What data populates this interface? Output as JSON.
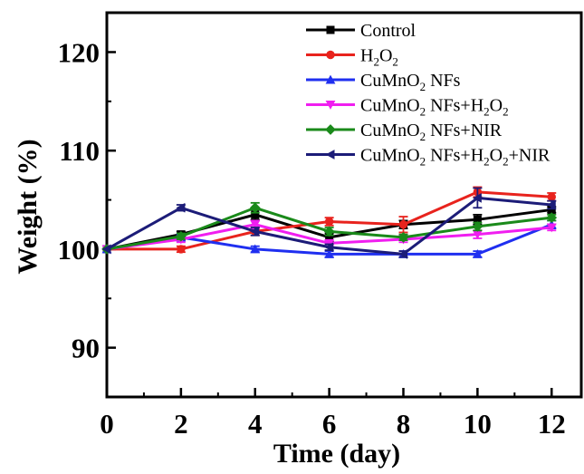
{
  "chart_data": {
    "type": "line",
    "xlabel": "Time (day)",
    "ylabel": "Weight (%)",
    "xlim": [
      0,
      12.8
    ],
    "ylim": [
      85,
      124
    ],
    "x_ticks": [
      0,
      2,
      4,
      6,
      8,
      10,
      12
    ],
    "x_tick_labels": [
      "0",
      "2",
      "4",
      "6",
      "8",
      "10",
      "12"
    ],
    "y_ticks": [
      90,
      100,
      110,
      120
    ],
    "y_tick_labels": [
      "90",
      "100",
      "110",
      "120"
    ],
    "x": [
      0,
      2,
      4,
      6,
      8,
      10,
      12
    ],
    "legend_position": "top-right",
    "series": [
      {
        "name": "Control",
        "name_parts": [
          [
            "Control",
            ""
          ]
        ],
        "color": "#000000",
        "marker": "square",
        "values": [
          100,
          101.5,
          103.5,
          101.2,
          102.5,
          103.0,
          104.0
        ],
        "errors": [
          0,
          0.3,
          0.5,
          0.4,
          0.4,
          0.5,
          0.3
        ]
      },
      {
        "name": "H2O2",
        "name_parts": [
          [
            "H",
            ""
          ],
          [
            "2",
            "sub"
          ],
          [
            "O",
            ""
          ],
          [
            "2",
            "sub"
          ]
        ],
        "color": "#e8231d",
        "marker": "circle",
        "values": [
          100,
          100,
          101.8,
          102.8,
          102.5,
          105.8,
          105.3
        ],
        "errors": [
          0,
          0.3,
          0.4,
          0.4,
          0.8,
          0.5,
          0.4
        ]
      },
      {
        "name": "CuMnO2 NFs",
        "name_parts": [
          [
            "CuMnO",
            ""
          ],
          [
            "2",
            "sub"
          ],
          [
            " NFs",
            ""
          ]
        ],
        "color": "#1f2ff0",
        "marker": "triangle-up",
        "values": [
          100,
          101.2,
          100,
          99.5,
          99.5,
          99.5,
          102.5
        ],
        "errors": [
          0,
          0.3,
          0.3,
          0.3,
          0.3,
          0.3,
          0.4
        ]
      },
      {
        "name": "CuMnO2 NFs+H2O2",
        "name_parts": [
          [
            "CuMnO",
            ""
          ],
          [
            "2",
            "sub"
          ],
          [
            " NFs+H",
            ""
          ],
          [
            "2",
            "sub"
          ],
          [
            "O",
            ""
          ],
          [
            "2",
            "sub"
          ]
        ],
        "color": "#f01ef0",
        "marker": "triangle-down",
        "values": [
          100,
          101.0,
          102.5,
          100.6,
          101.0,
          101.5,
          102.2
        ],
        "errors": [
          0,
          0.3,
          0.4,
          0.3,
          0.3,
          0.4,
          0.3
        ]
      },
      {
        "name": "CuMnO2 NFs+NIR",
        "name_parts": [
          [
            "CuMnO",
            ""
          ],
          [
            "2",
            "sub"
          ],
          [
            " NFs+NIR",
            ""
          ]
        ],
        "color": "#1a8a1a",
        "marker": "diamond",
        "values": [
          100,
          101.3,
          104.2,
          101.8,
          101.2,
          102.3,
          103.2
        ],
        "errors": [
          0,
          0.3,
          0.5,
          0.4,
          0.3,
          0.4,
          0.3
        ]
      },
      {
        "name": "CuMnO2 NFs+H2O2+NIR",
        "name_parts": [
          [
            "CuMnO",
            ""
          ],
          [
            "2",
            "sub"
          ],
          [
            " NFs+H",
            ""
          ],
          [
            "2",
            "sub"
          ],
          [
            "O",
            ""
          ],
          [
            "2",
            "sub"
          ],
          [
            "+NIR",
            ""
          ]
        ],
        "color": "#1c1c78",
        "marker": "triangle-left",
        "values": [
          100,
          104.2,
          101.8,
          100.2,
          99.5,
          105.2,
          104.5
        ],
        "errors": [
          0,
          0.3,
          0.4,
          0.3,
          0.3,
          1.0,
          0.4
        ]
      }
    ]
  }
}
